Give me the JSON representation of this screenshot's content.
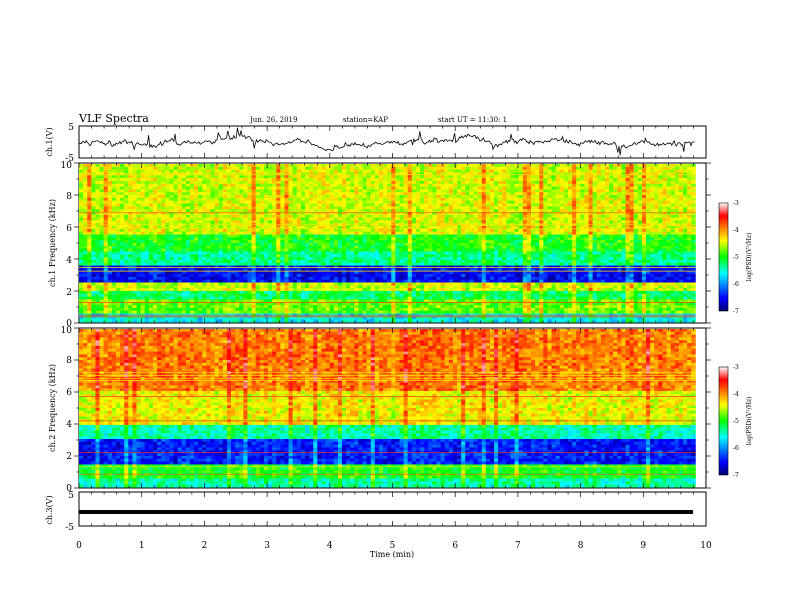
{
  "header": {
    "title": "VLF Spectra",
    "date": "Jun. 26, 2019",
    "station": "station=KAP",
    "start": "start UT =  11:30: 1"
  },
  "chart_data": [
    {
      "type": "line",
      "name": "ch1-waveform",
      "ylabel": "ch.1(V)",
      "ylim": [
        -5,
        5
      ],
      "yticks": [
        "5",
        "-5"
      ],
      "xlim": [
        0,
        10
      ]
    },
    {
      "type": "heatmap",
      "name": "ch1-spectrogram",
      "ylabel": "ch.1 Frequency (kHz)",
      "ylim": [
        0,
        10
      ],
      "yticks": [
        "0",
        "2",
        "4",
        "6",
        "8",
        "10"
      ],
      "xlim": [
        0,
        9.83
      ],
      "colorbar": {
        "label": "log(PSD)(V²/Hz)",
        "range": [
          -7,
          -3
        ],
        "ticks": [
          "-3",
          "-4",
          "-5",
          "-6",
          "-7"
        ]
      },
      "band_levels": [
        {
          "f": [
            0.0,
            0.5
          ],
          "level": 0.35
        },
        {
          "f": [
            0.5,
            1.5
          ],
          "level": 0.55
        },
        {
          "f": [
            1.5,
            2.0
          ],
          "level": 0.45
        },
        {
          "f": [
            2.0,
            2.5
          ],
          "level": 0.62
        },
        {
          "f": [
            2.5,
            3.5
          ],
          "level": 0.12
        },
        {
          "f": [
            3.5,
            4.5
          ],
          "level": 0.42
        },
        {
          "f": [
            4.5,
            5.5
          ],
          "level": 0.5
        },
        {
          "f": [
            5.5,
            10.0
          ],
          "level": 0.63
        }
      ]
    },
    {
      "type": "heatmap",
      "name": "ch2-spectrogram",
      "ylabel": "ch.2 Frequency (kHz)",
      "ylim": [
        0,
        10
      ],
      "yticks": [
        "0",
        "2",
        "4",
        "6",
        "8",
        "10"
      ],
      "xlim": [
        0,
        9.83
      ],
      "colorbar": {
        "label": "log(PSD)(V²/Hz)",
        "range": [
          -7,
          -3
        ],
        "ticks": [
          "-3",
          "-4",
          "-5",
          "-6",
          "-7"
        ]
      },
      "band_levels": [
        {
          "f": [
            0.0,
            0.5
          ],
          "level": 0.4
        },
        {
          "f": [
            0.5,
            1.5
          ],
          "level": 0.5
        },
        {
          "f": [
            1.5,
            3.0
          ],
          "level": 0.14
        },
        {
          "f": [
            3.0,
            4.0
          ],
          "level": 0.4
        },
        {
          "f": [
            4.0,
            6.0
          ],
          "level": 0.65
        },
        {
          "f": [
            6.0,
            10.0
          ],
          "level": 0.77
        }
      ]
    },
    {
      "type": "line",
      "name": "ch3-waveform",
      "ylabel": "ch.3(V)",
      "ylim": [
        -5,
        5
      ],
      "yticks": [
        "5",
        "-5"
      ],
      "xlim": [
        0,
        10
      ],
      "values": [
        {
          "x": 0,
          "y": 0
        },
        {
          "x": 9.83,
          "y": 0
        }
      ]
    }
  ],
  "xaxis": {
    "label": "Time (min)",
    "ticks": [
      "0",
      "1",
      "2",
      "3",
      "4",
      "5",
      "6",
      "7",
      "8",
      "9",
      "10"
    ],
    "range": [
      0,
      10
    ]
  }
}
